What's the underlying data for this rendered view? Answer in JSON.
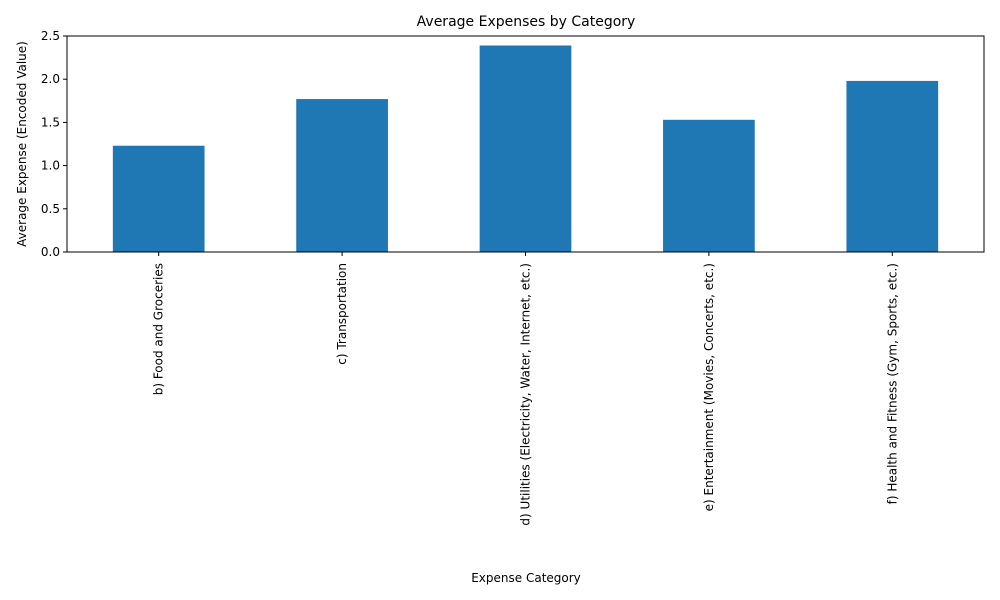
{
  "chart_data": {
    "type": "bar",
    "title": "Average Expenses by Category",
    "xlabel": "Expense Category",
    "ylabel": "Average Expense (Encoded Value)",
    "categories": [
      "b) Food and Groceries",
      "c) Transportation",
      "d) Utilities (Electricity, Water, Internet, etc.)",
      "e) Entertainment (Movies, Concerts, etc.)",
      "f) Health and Fitness (Gym, Sports, etc.)"
    ],
    "values": [
      1.23,
      1.77,
      2.39,
      1.53,
      1.98
    ],
    "ylim": [
      0,
      2.5
    ],
    "yticks": [
      "0.0",
      "0.5",
      "1.0",
      "1.5",
      "2.0",
      "2.5"
    ],
    "bar_color": "#1f77b4",
    "grid": false,
    "legend": "none"
  }
}
